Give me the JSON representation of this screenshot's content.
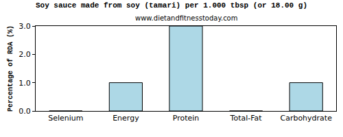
{
  "chart_data": {
    "type": "bar",
    "title": "Soy sauce made from soy (tamari) per 1.000 tbsp (or 18.00 g)",
    "subtitle": "www.dietandfitnesstoday.com",
    "y_label": "Percentage of RDA (%)",
    "categories": [
      "Selenium",
      "Energy",
      "Protein",
      "Total-Fat",
      "Carbohydrate"
    ],
    "values": [
      0,
      1,
      3,
      0,
      1
    ],
    "color": "#add8e6",
    "ylim": [
      0,
      3
    ],
    "yticks": [
      {
        "value": 0,
        "label": "0.0"
      },
      {
        "value": 1,
        "label": "1.0"
      },
      {
        "value": 2,
        "label": "2.0"
      },
      {
        "value": 3,
        "label": "3.0"
      }
    ],
    "grid": false
  }
}
